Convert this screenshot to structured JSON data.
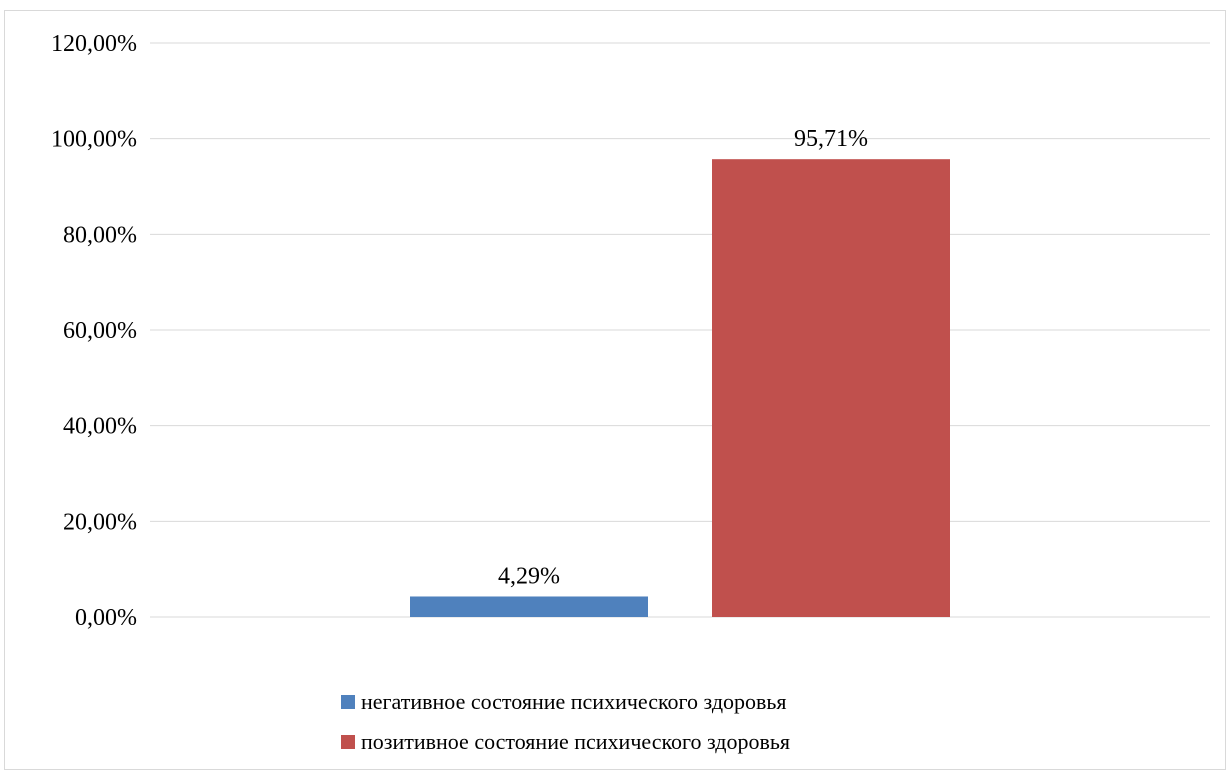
{
  "chart_data": {
    "type": "bar",
    "title": "",
    "xlabel": "",
    "ylabel": "",
    "ylim": [
      0,
      120
    ],
    "yticks": [
      "0,00%",
      "20,00%",
      "40,00%",
      "60,00%",
      "80,00%",
      "100,00%",
      "120,00%"
    ],
    "ytick_values": [
      0,
      20,
      40,
      60,
      80,
      100,
      120
    ],
    "grid": true,
    "legend_position": "bottom",
    "series": [
      {
        "name": "негативное состояние психического здоровья",
        "values": [
          4.29
        ],
        "data_label": "4,29%",
        "color": "#4f81bd"
      },
      {
        "name": "позитивное состояние психического здоровья",
        "values": [
          95.71
        ],
        "data_label": "95,71%",
        "color": "#c0504d"
      }
    ]
  }
}
